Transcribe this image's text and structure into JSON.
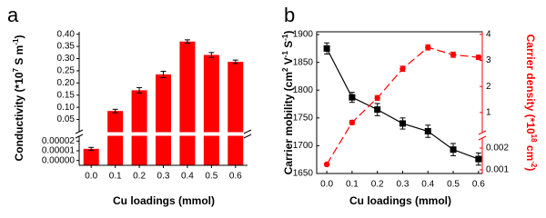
{
  "chart_data": [
    {
      "type": "bar",
      "panel_label": "a",
      "categories": [
        "0.0",
        "0.1",
        "0.2",
        "0.3",
        "0.4",
        "0.5",
        "0.6"
      ],
      "values": [
        1.2e-05,
        0.085,
        0.17,
        0.235,
        0.37,
        0.315,
        0.287
      ],
      "errors": [
        1.5e-06,
        0.007,
        0.011,
        0.013,
        0.007,
        0.01,
        0.007
      ],
      "color": "#ff0000",
      "ylim": [
        0,
        0.41
      ],
      "ylim_lower": [
        -5e-06,
        2.5e-05
      ],
      "yticks": [
        0.05,
        {
          "value": 0.1,
          "label": "0.10"
        },
        0.15,
        {
          "value": 0.2,
          "label": "0.20"
        },
        0.25,
        {
          "value": 0.3,
          "label": "0.30"
        },
        0.35,
        {
          "value": 0.4,
          "label": "0.40"
        }
      ],
      "yticks_lower": [
        {
          "value": 0,
          "label": "0.00000"
        },
        1e-05,
        2e-05
      ],
      "xlabel": "Cu loadings (mmol)",
      "ylabel": [
        "Conductivity (*10",
        "7",
        " S m",
        "-1",
        ")"
      ]
    },
    {
      "type": "line",
      "panel_label": "b",
      "x": [
        0,
        0.1,
        0.2,
        0.3,
        0.4,
        0.5,
        0.6
      ],
      "series": [
        {
          "color": "#000000",
          "marker": "square",
          "dash": false,
          "values": [
            1875,
            1787,
            1765,
            1740,
            1726,
            1693,
            1676
          ],
          "errors": [
            10,
            9,
            11,
            10,
            11,
            11,
            11
          ]
        },
        {
          "color": "#ff0000",
          "marker": "circle",
          "dash": true,
          "axis": "y2",
          "values": [
            0.00125,
            0.62,
            1.56,
            2.68,
            3.5,
            3.22,
            3.12
          ],
          "errors": [
            4e-05,
            0.08,
            0.09,
            0.1,
            0.1,
            0.1,
            0.08
          ]
        }
      ],
      "xlim": [
        -0.04,
        0.615
      ],
      "xticks": [
        {
          "value": 0,
          "label": "0.0"
        },
        0.1,
        0.2,
        0.3,
        0.4,
        0.5,
        0.6
      ],
      "ylim": [
        1650,
        1905
      ],
      "yticks": [
        1650,
        1700,
        1750,
        1800,
        1850,
        1900
      ],
      "y2lim": [
        0.23,
        4.1
      ],
      "y2ticks": [
        1,
        2,
        3,
        4
      ],
      "y2lim_lower": [
        0.00083,
        0.00246
      ],
      "y2ticks_lower": [
        0.001,
        0.002
      ],
      "xlabel": "Cu loadings (mmol)",
      "ylabel": [
        "Carrier mobility (cm",
        "2",
        " V",
        "-1",
        " S",
        "-1",
        ")"
      ],
      "y2label": [
        "Carrier density (*10",
        "18",
        " cm",
        "-2",
        ")"
      ]
    }
  ]
}
